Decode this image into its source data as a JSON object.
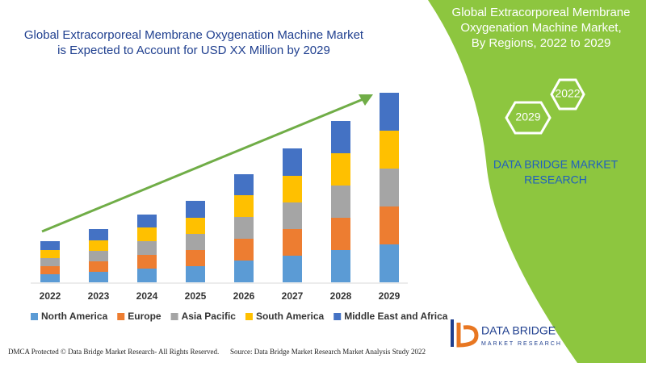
{
  "chart_data": {
    "type": "stacked_bar",
    "title": [
      "Global Extracorporeal Membrane Oxygenation Machine Market",
      "is Expected to Account for USD XX Million by 2029"
    ],
    "categories": [
      "2022",
      "2023",
      "2024",
      "2025",
      "2026",
      "2027",
      "2028",
      "2029"
    ],
    "series": [
      {
        "name": "North America",
        "color": "#5b9bd5",
        "values": [
          10,
          13,
          17,
          20,
          27,
          33,
          40,
          47
        ]
      },
      {
        "name": "Europe",
        "color": "#ed7d31",
        "values": [
          10,
          13,
          17,
          20,
          27,
          33,
          40,
          47
        ]
      },
      {
        "name": "Asia Pacific",
        "color": "#a5a5a5",
        "values": [
          10,
          13,
          17,
          20,
          27,
          33,
          40,
          47
        ]
      },
      {
        "name": "South America",
        "color": "#ffc000",
        "values": [
          10,
          13,
          17,
          20,
          27,
          33,
          40,
          47
        ]
      },
      {
        "name": "Middle East and Africa",
        "color": "#4472c4",
        "values": [
          11,
          14,
          16,
          21,
          26,
          34,
          40,
          47
        ]
      }
    ]
  },
  "panel": {
    "title": [
      "Global Extracorporeal Membrane",
      "Oxygenation Machine Market,",
      "By Regions, 2022 to 2029"
    ],
    "hexagons": [
      "2022",
      "2029"
    ],
    "brand": [
      "DATA BRIDGE MARKET",
      "RESEARCH"
    ],
    "logo": {
      "name": "DATA BRIDGE",
      "tagline": "MARKET RESEARCH"
    }
  },
  "footer": {
    "left": "DMCA Protected © Data Bridge Market Research- All Rights Reserved.",
    "right": "Source: Data Bridge Market Research Market Analysis Study 2022"
  }
}
